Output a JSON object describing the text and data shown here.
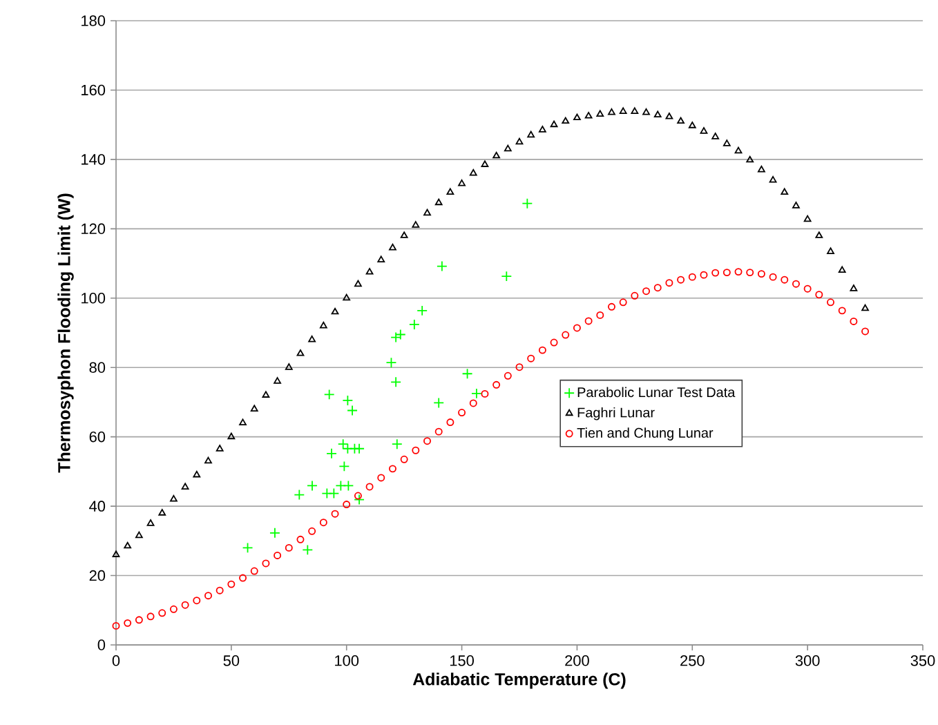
{
  "chart_data": {
    "type": "scatter",
    "xlabel": "Adiabatic Temperature (C)",
    "ylabel": "Thermosyphon Flooding Limit (W)",
    "xlim": [
      0,
      350
    ],
    "xticks": [
      0,
      50,
      100,
      150,
      200,
      250,
      300,
      350
    ],
    "ylim": [
      0,
      180
    ],
    "yticks": [
      0,
      20,
      40,
      60,
      80,
      100,
      120,
      140,
      160,
      180
    ],
    "grid": "y",
    "legend": "right",
    "series": [
      {
        "name": "Parabolic Lunar Test Data",
        "color": "#00ff00",
        "marker": "cross",
        "x": [
          57.1,
          68.9,
          79.5,
          83.1,
          85.1,
          91.5,
          92.5,
          93.5,
          94.5,
          97.5,
          98.5,
          99,
          100.5,
          100.5,
          100.8,
          102.5,
          103.5,
          105.5,
          105.5,
          119.4,
          121.4,
          121.4,
          121.9,
          123.4,
          129.4,
          132.8,
          140,
          141.4,
          152.4,
          156.4,
          169.4,
          178.4
        ],
        "values": [
          28,
          32.3,
          43.3,
          27.4,
          45.9,
          43.7,
          72.2,
          55.2,
          43.7,
          45.9,
          57.9,
          51.5,
          70.5,
          56.6,
          45.9,
          67.6,
          56.6,
          56.6,
          41.9,
          81.4,
          88.7,
          75.8,
          57.9,
          89.5,
          92.4,
          96.4,
          69.8,
          109.2,
          78.2,
          72.5,
          106.3,
          127.3
        ]
      },
      {
        "name": "Faghri Lunar",
        "color": "#000000",
        "marker": "triangle",
        "x": [
          0,
          5,
          10,
          15,
          20,
          25,
          30,
          35,
          40,
          45,
          50,
          55,
          60,
          65,
          70,
          75,
          80,
          85,
          90,
          95,
          100,
          105,
          110,
          115,
          120,
          125,
          130,
          135,
          140,
          145,
          150,
          155,
          160,
          165,
          170,
          175,
          180,
          185,
          190,
          195,
          200,
          205,
          210,
          215,
          220,
          225,
          230,
          235,
          240,
          245,
          250,
          255,
          260,
          265,
          270,
          275,
          280,
          285,
          290,
          295,
          300,
          305,
          310,
          315,
          320,
          325
        ],
        "values": [
          26,
          28.5,
          31.5,
          35,
          38,
          42,
          45.5,
          49,
          53,
          56.5,
          60,
          64,
          68,
          72,
          76,
          80,
          84,
          88,
          92,
          96,
          100,
          104,
          107.5,
          111,
          114.5,
          118,
          121,
          124.5,
          127.5,
          130.5,
          133,
          136,
          138.5,
          141,
          143,
          145,
          147,
          148.5,
          150,
          151,
          152,
          152.5,
          153,
          153.5,
          153.8,
          153.8,
          153.5,
          152.8,
          152.3,
          151,
          149.7,
          148.1,
          146.5,
          144.5,
          142.4,
          139.8,
          137,
          134,
          130.5,
          126.6,
          122.7,
          118,
          113.4,
          108,
          102.7,
          97
        ]
      },
      {
        "name": "Tien and Chung Lunar",
        "color": "#ff0000",
        "marker": "circle",
        "x": [
          0,
          5,
          10,
          15,
          20,
          25,
          30,
          35,
          40,
          45,
          50,
          55,
          60,
          65,
          70,
          75,
          80,
          85,
          90,
          95,
          100,
          105,
          110,
          115,
          120,
          125,
          130,
          135,
          140,
          145,
          150,
          155,
          160,
          165,
          170,
          175,
          180,
          185,
          190,
          195,
          200,
          205,
          210,
          215,
          220,
          225,
          230,
          235,
          240,
          245,
          250,
          255,
          260,
          265,
          270,
          275,
          280,
          285,
          290,
          295,
          300,
          305,
          310,
          315,
          320,
          325
        ],
        "values": [
          5.5,
          6.3,
          7.2,
          8.2,
          9.2,
          10.3,
          11.5,
          12.8,
          14.2,
          15.7,
          17.5,
          19.3,
          21.3,
          23.5,
          25.8,
          28,
          30.4,
          32.8,
          35.3,
          37.8,
          40.5,
          43,
          45.6,
          48.2,
          50.8,
          53.5,
          56.1,
          58.8,
          61.5,
          64.2,
          67,
          69.7,
          72.4,
          75,
          77.6,
          80.1,
          82.6,
          85,
          87.2,
          89.4,
          91.4,
          93.4,
          95.1,
          97.5,
          98.8,
          100.7,
          102,
          103,
          104.4,
          105.3,
          106.1,
          106.7,
          107.3,
          107.4,
          107.6,
          107.4,
          107,
          106.1,
          105.3,
          104.1,
          102.7,
          101,
          98.8,
          96.4,
          93.3,
          90.4
        ]
      }
    ]
  }
}
